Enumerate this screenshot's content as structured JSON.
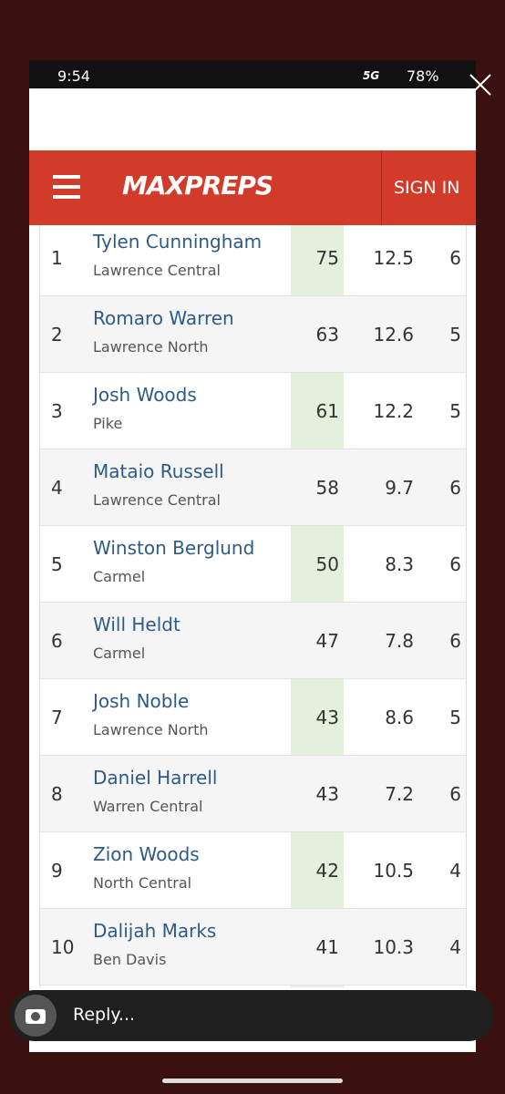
{
  "status_bar": {
    "time": "9:54",
    "network": "5G",
    "battery": "78%"
  },
  "header": {
    "logo": "MAXPREPS",
    "sign_in": "SIGN IN"
  },
  "table": {
    "rows": [
      [
        1,
        "Tylen Cunningham",
        "Lawrence Central",
        75,
        12.5,
        6
      ],
      [
        2,
        "Romaro Warren",
        "Lawrence North",
        63,
        12.6,
        5
      ],
      [
        3,
        "Josh Woods",
        "Pike",
        61,
        12.2,
        5
      ],
      [
        4,
        "Mataio Russell",
        "Lawrence Central",
        58,
        9.7,
        6
      ],
      [
        5,
        "Winston Berglund",
        "Carmel",
        50,
        8.3,
        6
      ],
      [
        6,
        "Will Heldt",
        "Carmel",
        47,
        7.8,
        6
      ],
      [
        7,
        "Josh Noble",
        "Lawrence North",
        43,
        8.6,
        5
      ],
      [
        8,
        "Daniel Harrell",
        "Warren Central",
        43,
        7.2,
        6
      ],
      [
        9,
        "Zion Woods",
        "North Central",
        42,
        10.5,
        4
      ],
      [
        10,
        "Dalijah Marks",
        "Ben Davis",
        41,
        10.3,
        4
      ]
    ]
  },
  "reply_bar": {
    "placeholder": "Reply..."
  }
}
